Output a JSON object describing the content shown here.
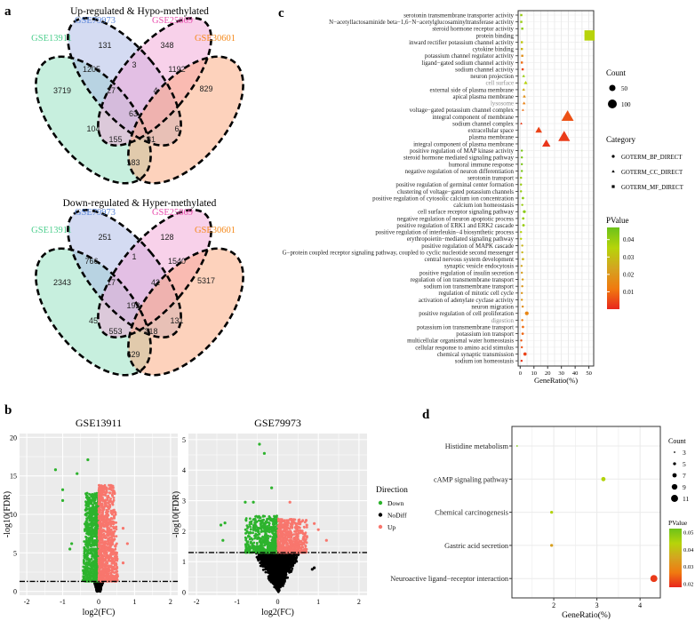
{
  "panel_labels": {
    "a": "a",
    "b": "b",
    "c": "c",
    "d": "d"
  },
  "colors": {
    "venn_sets": [
      "#8fe0bd",
      "#a9b8e6",
      "#f2a3d6",
      "#fca57a"
    ],
    "venn_label_colors": [
      "#4fcf8f",
      "#5b86d8",
      "#e84fae",
      "#f58a1c"
    ],
    "down": "#2db32d",
    "nodiff": "#000000",
    "up": "#f8766d",
    "pvalue_gradient": [
      "#e8261c",
      "#f07a10",
      "#d4a420",
      "#b6d40a",
      "#6cc21a"
    ]
  },
  "chart_data": [
    {
      "type": "venn",
      "title": "Up-regulated & Hypo-methylated",
      "sets": [
        "GSE13911",
        "GSE79973",
        "GSE25869",
        "GSE30601"
      ],
      "regions": {
        "A": 3719,
        "B": 131,
        "C": 348,
        "D": 829,
        "AB": 1205,
        "BC": 3,
        "CD": 1192,
        "AC": 104,
        "BD": 6,
        "AD": 183,
        "ABC": 27,
        "BCD": 4,
        "ACD": 155,
        "ABD": 81,
        "ABCD": 63
      }
    },
    {
      "type": "venn",
      "title": "Down-regulated & Hyper-methylated",
      "sets": [
        "GSE13911",
        "GSE79973",
        "GSE25869",
        "GSE30601"
      ],
      "regions": {
        "A": 2343,
        "B": 251,
        "C": 128,
        "D": 5317,
        "AB": 766,
        "BC": 1,
        "CD": 1540,
        "AC": 45,
        "BD": 131,
        "AD": 629,
        "ABC": 17,
        "BCD": 42,
        "ACD": 553,
        "ABD": 318,
        "ABCD": 192
      }
    },
    {
      "type": "scatter",
      "title": "GSE13911",
      "xlabel": "log2(FC)",
      "ylabel": "-log10(FDR)",
      "xlim": [
        -2.2,
        2.2
      ],
      "ylim": [
        -0.5,
        20.5
      ],
      "xticks": [
        -2,
        -1,
        0,
        1,
        2
      ],
      "yticks": [
        0,
        5,
        10,
        15,
        20
      ],
      "threshold": 1.3,
      "outliers": [
        [
          -1.2,
          15.8,
          "Down"
        ],
        [
          -0.6,
          15.3,
          "Down"
        ],
        [
          -0.3,
          17.1,
          "Down"
        ],
        [
          -1.0,
          13.2,
          "Down"
        ],
        [
          -1.0,
          11.8,
          "Down"
        ],
        [
          -0.8,
          5.5,
          "Down"
        ],
        [
          -0.75,
          6.2,
          "Down"
        ],
        [
          0.8,
          6.2,
          "Up"
        ],
        [
          0.68,
          8.2,
          "Up"
        ],
        [
          0.68,
          3.7,
          "Up"
        ]
      ]
    },
    {
      "type": "scatter",
      "title": "GSE79973",
      "xlabel": "log2(FC)",
      "ylabel": "-log10(FDR)",
      "xlim": [
        -2.2,
        2.2
      ],
      "ylim": [
        -0.1,
        5.2
      ],
      "xticks": [
        -2,
        -1,
        0,
        1,
        2
      ],
      "yticks": [
        0,
        1,
        2,
        3,
        4,
        5
      ],
      "threshold": 1.3,
      "outliers": [
        [
          -0.45,
          4.85,
          "Down"
        ],
        [
          -0.33,
          4.55,
          "Down"
        ],
        [
          -0.15,
          3.42,
          "Down"
        ],
        [
          -1.4,
          2.2,
          "Down"
        ],
        [
          -1.3,
          2.27,
          "Down"
        ],
        [
          -0.8,
          2.95,
          "Down"
        ],
        [
          -0.6,
          2.95,
          "Down"
        ],
        [
          -1.35,
          1.7,
          "Down"
        ],
        [
          0.3,
          2.95,
          "Up"
        ],
        [
          1.2,
          1.7,
          "Up"
        ],
        [
          1.0,
          2.05,
          "Up"
        ],
        [
          0.9,
          2.25,
          "Up"
        ],
        [
          0.9,
          0.8,
          "NoDiff"
        ],
        [
          0.85,
          0.75,
          "NoDiff"
        ]
      ],
      "legend": {
        "title": "Direction",
        "items": [
          "Down",
          "NoDiff",
          "Up"
        ]
      }
    },
    {
      "type": "scatter",
      "xlabel": "GeneRatio(%)",
      "xlim": [
        -1.5,
        53.5
      ],
      "xticks": [
        0,
        10,
        20,
        30,
        40,
        50
      ],
      "size_legend": {
        "title": "Count",
        "items": [
          50,
          100
        ]
      },
      "category_legend": {
        "title": "Category",
        "items": [
          "GOTERM_BP_DIRECT",
          "GOTERM_CC_DIRECT",
          "GOTERM_MF_DIRECT"
        ]
      },
      "color_legend": {
        "title": "PValue",
        "ticks": [
          "0.04",
          "0.03",
          "0.02",
          "0.01"
        ],
        "range": [
          0.0,
          0.047
        ]
      },
      "terms": [
        {
          "label": "serotonin transmembrane transporter activity",
          "ratio": 0.8,
          "count": 2,
          "p": 0.04,
          "cat": "MF"
        },
        {
          "label": "N−acetyllactosaminide beta−1,6−N−acetylglucosaminyltransferase activity",
          "ratio": 0.8,
          "count": 2,
          "p": 0.04,
          "cat": "MF"
        },
        {
          "label": "steroid hormone receptor activity",
          "ratio": 1.5,
          "count": 4,
          "p": 0.042,
          "cat": "MF"
        },
        {
          "label": "protein binding",
          "ratio": 50.5,
          "count": 110,
          "p": 0.035,
          "cat": "MF"
        },
        {
          "label": "inward rectifier potassium channel activity",
          "ratio": 1.2,
          "count": 3,
          "p": 0.032,
          "cat": "MF"
        },
        {
          "label": "cytokine binding",
          "ratio": 1.2,
          "count": 3,
          "p": 0.028,
          "cat": "MF"
        },
        {
          "label": "potassium channel regulator activity",
          "ratio": 1.5,
          "count": 3,
          "p": 0.018,
          "cat": "MF"
        },
        {
          "label": "ligand−gated sodium channel activity",
          "ratio": 1.2,
          "count": 3,
          "p": 0.01,
          "cat": "MF"
        },
        {
          "label": "sodium channel activity",
          "ratio": 1.8,
          "count": 4,
          "p": 0.005,
          "cat": "MF"
        },
        {
          "label": "neuron projection",
          "ratio": 2.5,
          "count": 8,
          "p": 0.04,
          "cat": "CC"
        },
        {
          "label": "cell surface",
          "ratio": 4.0,
          "count": 12,
          "p": 0.035,
          "cat": "CC",
          "grey": true
        },
        {
          "label": "external side of plasma membrane",
          "ratio": 2.5,
          "count": 8,
          "p": 0.025,
          "cat": "CC"
        },
        {
          "label": "apical plasma membrane",
          "ratio": 3.0,
          "count": 9,
          "p": 0.018,
          "cat": "CC"
        },
        {
          "label": "lysosome",
          "ratio": 2.8,
          "count": 8,
          "p": 0.014,
          "cat": "CC",
          "grey": true
        },
        {
          "label": "voltage−gated potassium channel complex",
          "ratio": 2.0,
          "count": 5,
          "p": 0.01,
          "cat": "CC"
        },
        {
          "label": "integral component of membrane",
          "ratio": 34.5,
          "count": 130,
          "p": 0.006,
          "cat": "CC"
        },
        {
          "label": "sodium channel complex",
          "ratio": 0.8,
          "count": 2,
          "p": 0.003,
          "cat": "CC"
        },
        {
          "label": "extracellular space",
          "ratio": 13.5,
          "count": 40,
          "p": 0.004,
          "cat": "CC"
        },
        {
          "label": "plasma membrane",
          "ratio": 32.0,
          "count": 120,
          "p": 0.003,
          "cat": "CC"
        },
        {
          "label": "integral component of plasma membrane",
          "ratio": 19.0,
          "count": 60,
          "p": 0.002,
          "cat": "CC"
        },
        {
          "label": "positive regulation of MAP kinase activity",
          "ratio": 1.2,
          "count": 4,
          "p": 0.045,
          "cat": "BP"
        },
        {
          "label": "steroid hormone mediated signaling pathway",
          "ratio": 1.2,
          "count": 4,
          "p": 0.045,
          "cat": "BP"
        },
        {
          "label": "humoral immune response",
          "ratio": 1.2,
          "count": 4,
          "p": 0.045,
          "cat": "BP"
        },
        {
          "label": "negative regulation of neuron differentiation",
          "ratio": 1.2,
          "count": 4,
          "p": 0.045,
          "cat": "BP"
        },
        {
          "label": "serotonin transport",
          "ratio": 0.6,
          "count": 2,
          "p": 0.04,
          "cat": "BP"
        },
        {
          "label": "positive regulation of germinal center formation",
          "ratio": 0.6,
          "count": 2,
          "p": 0.04,
          "cat": "BP"
        },
        {
          "label": "clustering of voltage−gated potassium channels",
          "ratio": 0.6,
          "count": 2,
          "p": 0.04,
          "cat": "BP"
        },
        {
          "label": "positive regulation of cytosolic calcium ion concentration",
          "ratio": 2.0,
          "count": 6,
          "p": 0.042,
          "cat": "BP"
        },
        {
          "label": "calcium ion homeostasis",
          "ratio": 1.5,
          "count": 4,
          "p": 0.04,
          "cat": "BP"
        },
        {
          "label": "cell surface receptor signaling pathway",
          "ratio": 3.0,
          "count": 9,
          "p": 0.042,
          "cat": "BP"
        },
        {
          "label": "negative regulation of neuron apoptotic process",
          "ratio": 2.2,
          "count": 6,
          "p": 0.04,
          "cat": "BP"
        },
        {
          "label": "positive regulation of ERK1 and ERK2 cascade",
          "ratio": 2.4,
          "count": 7,
          "p": 0.04,
          "cat": "BP"
        },
        {
          "label": "positive regulation of interleukin−4 biosynthetic process",
          "ratio": 0.6,
          "count": 2,
          "p": 0.035,
          "cat": "BP"
        },
        {
          "label": "erythropoietin−mediated signaling pathway",
          "ratio": 0.6,
          "count": 2,
          "p": 0.035,
          "cat": "BP"
        },
        {
          "label": "positive regulation of MAPK cascade",
          "ratio": 1.5,
          "count": 5,
          "p": 0.028,
          "cat": "BP"
        },
        {
          "label": "G−protein coupled receptor signaling pathway, coupled to cyclic nucleotide second messenger",
          "ratio": 1.5,
          "count": 4,
          "p": 0.028,
          "cat": "BP"
        },
        {
          "label": "central nervous system development",
          "ratio": 2.0,
          "count": 6,
          "p": 0.027,
          "cat": "BP"
        },
        {
          "label": "synaptic vesicle endocytosis",
          "ratio": 1.0,
          "count": 3,
          "p": 0.024,
          "cat": "BP"
        },
        {
          "label": "positive regulation of insulin secretion",
          "ratio": 1.2,
          "count": 4,
          "p": 0.022,
          "cat": "BP"
        },
        {
          "label": "regulation of ion transmembrane transport",
          "ratio": 1.8,
          "count": 5,
          "p": 0.022,
          "cat": "BP"
        },
        {
          "label": "sodium ion transmembrane transport",
          "ratio": 1.5,
          "count": 5,
          "p": 0.02,
          "cat": "BP"
        },
        {
          "label": "regulation of mitotic cell cycle",
          "ratio": 1.2,
          "count": 4,
          "p": 0.02,
          "cat": "BP"
        },
        {
          "label": "activation of adenylate cyclase activity",
          "ratio": 1.2,
          "count": 4,
          "p": 0.02,
          "cat": "BP"
        },
        {
          "label": "neuron migration",
          "ratio": 1.8,
          "count": 5,
          "p": 0.018,
          "cat": "BP"
        },
        {
          "label": "positive regulation of cell proliferation",
          "ratio": 4.8,
          "count": 14,
          "p": 0.015,
          "cat": "BP"
        },
        {
          "label": "digestion",
          "ratio": 1.5,
          "count": 5,
          "p": 0.012,
          "cat": "BP",
          "grey": true
        },
        {
          "label": "potassium ion transmembrane transport",
          "ratio": 2.0,
          "count": 6,
          "p": 0.01,
          "cat": "BP"
        },
        {
          "label": "potassium ion transport",
          "ratio": 1.8,
          "count": 6,
          "p": 0.009,
          "cat": "BP"
        },
        {
          "label": "multicellular organismal water homeostasis",
          "ratio": 0.8,
          "count": 3,
          "p": 0.007,
          "cat": "BP"
        },
        {
          "label": "cellular response to amino acid stimulus",
          "ratio": 1.2,
          "count": 4,
          "p": 0.006,
          "cat": "BP"
        },
        {
          "label": "chemical synaptic transmission",
          "ratio": 3.5,
          "count": 11,
          "p": 0.004,
          "cat": "BP"
        },
        {
          "label": "sodium ion homeostasis",
          "ratio": 1.0,
          "count": 3,
          "p": 0.002,
          "cat": "BP"
        }
      ]
    },
    {
      "type": "scatter",
      "xlabel": "GeneRatio(%)",
      "xlim": [
        1.03,
        4.47
      ],
      "xticks": [
        2,
        3,
        4
      ],
      "size_legend": {
        "title": "Count",
        "items": [
          3,
          5,
          7,
          9,
          11
        ]
      },
      "color_legend": {
        "title": "PValue",
        "ticks": [
          "0.05",
          "0.04",
          "0.03",
          "0.02"
        ],
        "range": [
          0.018,
          0.052
        ]
      },
      "terms": [
        {
          "label": "Histidine metabolism",
          "ratio": 1.15,
          "count": 3,
          "p": 0.05
        },
        {
          "label": "cAMP signaling pathway",
          "ratio": 3.15,
          "count": 7,
          "p": 0.044
        },
        {
          "label": "Chemical carcinogenesis",
          "ratio": 1.95,
          "count": 5,
          "p": 0.044
        },
        {
          "label": "Gastric acid secretion",
          "ratio": 1.95,
          "count": 5,
          "p": 0.034
        },
        {
          "label": "Neuroactive ligand−receptor interaction",
          "ratio": 4.32,
          "count": 11,
          "p": 0.02
        }
      ]
    }
  ]
}
